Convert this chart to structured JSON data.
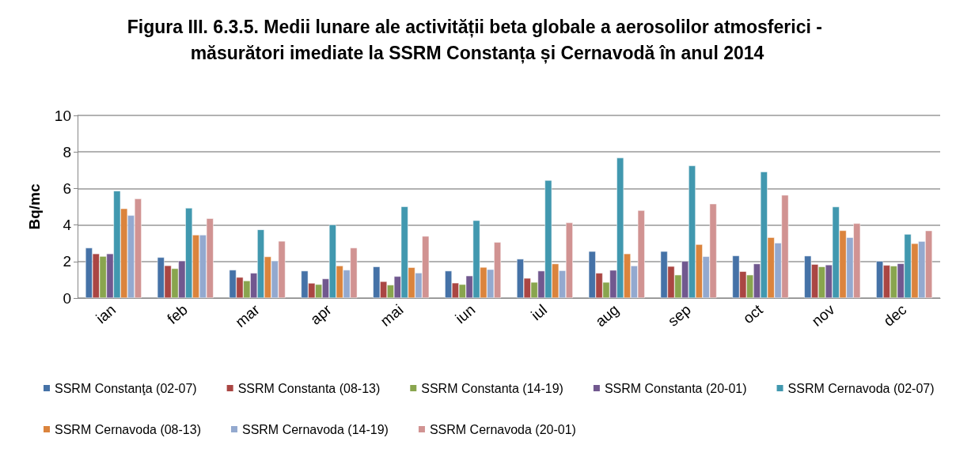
{
  "chart_data": {
    "type": "bar",
    "title": "Figura III. 6.3.5. Medii lunare ale activității beta globale a aerosolilor atmosferici - măsurători imediate la SSRM Constanța și Cernavodă în anul 2014",
    "ylabel": "Bq/mc",
    "categories": [
      "ian",
      "feb",
      "mar",
      "apr",
      "mai",
      "iun",
      "iul",
      "aug",
      "sep",
      "oct",
      "nov",
      "dec"
    ],
    "series": [
      {
        "name": "SSRM Constanţa (02-07)",
        "color": "#4572a7",
        "values": [
          2.75,
          2.23,
          1.54,
          1.49,
          1.72,
          1.49,
          2.14,
          2.56,
          2.56,
          2.32,
          2.31,
          2.02
        ]
      },
      {
        "name": "SSRM Constanta (08-13)",
        "color": "#aa4643",
        "values": [
          2.43,
          1.78,
          1.14,
          0.82,
          0.91,
          0.83,
          1.09,
          1.37,
          1.74,
          1.46,
          1.85,
          1.8
        ]
      },
      {
        "name": "SSRM Constanta (14-19)",
        "color": "#89a54e",
        "values": [
          2.29,
          1.62,
          0.95,
          0.75,
          0.72,
          0.75,
          0.87,
          0.87,
          1.27,
          1.27,
          1.72,
          1.76
        ]
      },
      {
        "name": "SSRM Constanta (20-01)",
        "color": "#71588f",
        "values": [
          2.43,
          2.04,
          1.37,
          1.06,
          1.19,
          1.22,
          1.49,
          1.53,
          2.02,
          1.88,
          1.82,
          1.89
        ]
      },
      {
        "name": "SSRM Cernavoda (02-07)",
        "color": "#4198af",
        "values": [
          5.87,
          4.93,
          3.75,
          4.02,
          5.01,
          4.25,
          6.45,
          7.68,
          7.25,
          6.92,
          5.0,
          3.5
        ]
      },
      {
        "name": "SSRM Cernavoda (08-13)",
        "color": "#db843d",
        "values": [
          4.9,
          3.46,
          2.27,
          1.77,
          1.68,
          1.69,
          1.88,
          2.43,
          2.94,
          3.32,
          3.7,
          2.99
        ]
      },
      {
        "name": "SSRM Cernavoda (14-19)",
        "color": "#93a9cf",
        "values": [
          4.53,
          3.46,
          2.04,
          1.54,
          1.38,
          1.57,
          1.51,
          1.77,
          2.28,
          3.02,
          3.32,
          3.11
        ]
      },
      {
        "name": "SSRM Cernavoda (20-01)",
        "color": "#d19392",
        "values": [
          5.44,
          4.36,
          3.12,
          2.75,
          3.39,
          3.06,
          4.13,
          4.8,
          5.16,
          5.64,
          4.09,
          3.69
        ]
      }
    ],
    "ylim": [
      0,
      10
    ],
    "yticks": [
      0,
      2,
      4,
      6,
      8,
      10
    ],
    "grid": "y",
    "legend": "bottom"
  }
}
